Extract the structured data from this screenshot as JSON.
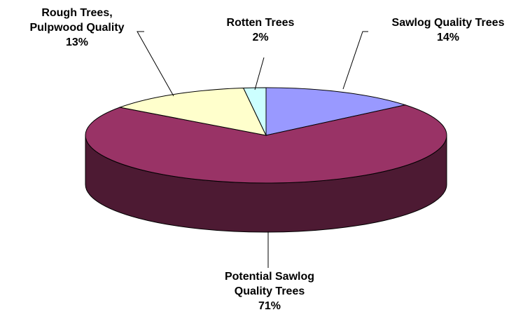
{
  "chart_data": {
    "type": "pie",
    "categories": [
      "Sawlog Quality Trees",
      "Potential Sawlog Quality Trees",
      "Rough Trees, Pulpwood Quality",
      "Rotten Trees"
    ],
    "values": [
      14,
      71,
      13,
      2
    ],
    "value_labels": [
      "14%",
      "71%",
      "13%",
      "2%"
    ],
    "colors": [
      "#9999ff",
      "#993366",
      "#ffffcc",
      "#ccffff"
    ]
  }
}
